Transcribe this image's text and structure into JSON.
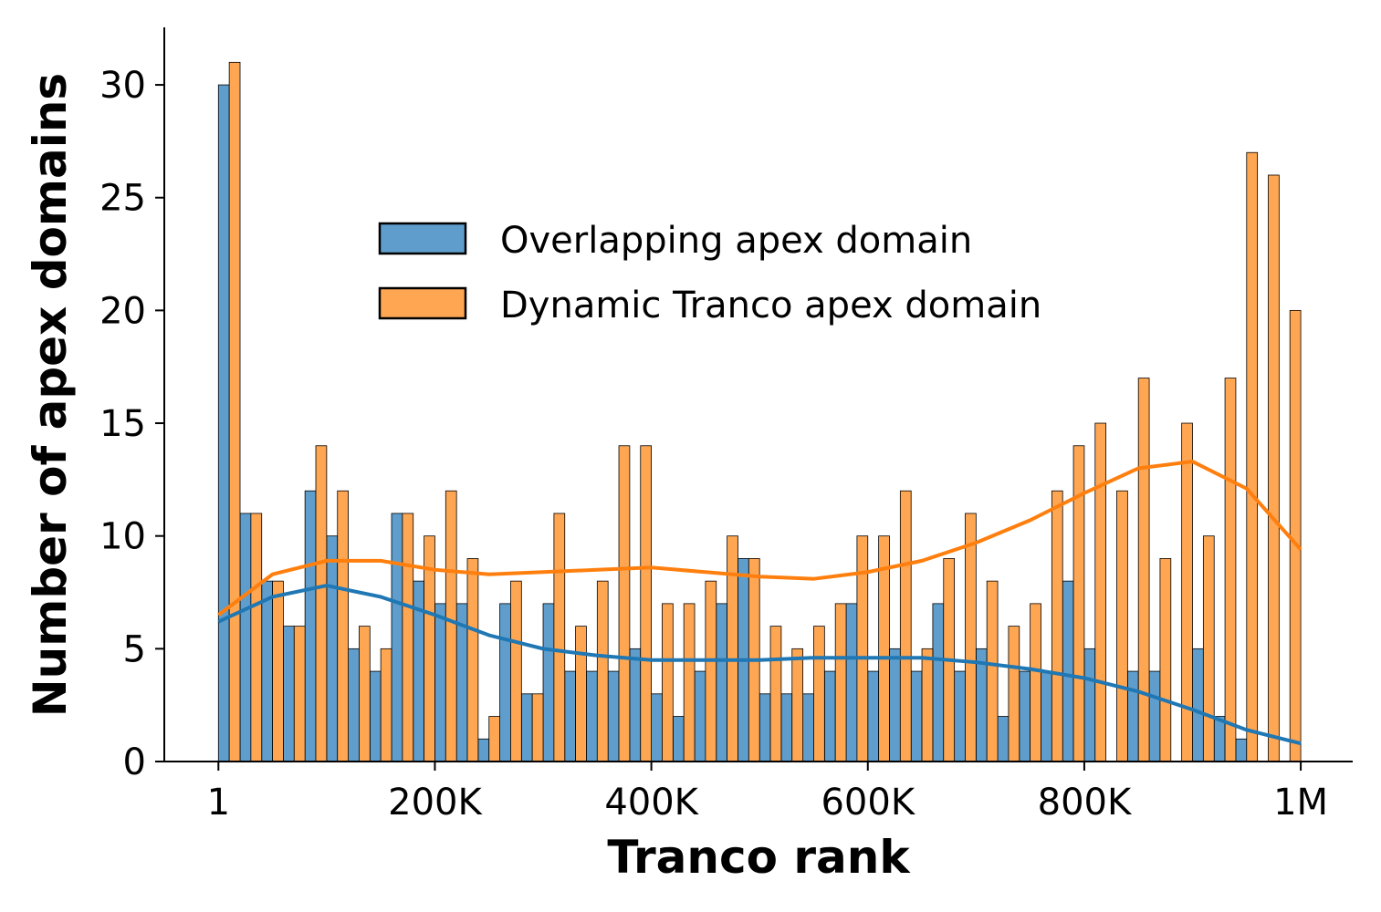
{
  "chart_data": {
    "type": "histogram",
    "xlabel": "Tranco rank",
    "ylabel": "Number of apex domains",
    "bins": [
      1,
      20000,
      40000,
      60000,
      80000,
      100000,
      120000,
      140000,
      160000,
      180000,
      200000,
      220000,
      240000,
      260000,
      280000,
      300000,
      320000,
      340000,
      360000,
      380000,
      400000,
      420000,
      440000,
      460000,
      480000,
      500000,
      520000,
      540000,
      560000,
      580000,
      600000,
      620000,
      640000,
      660000,
      680000,
      700000,
      720000,
      740000,
      760000,
      780000,
      800000,
      820000,
      840000,
      860000,
      880000,
      900000,
      920000,
      940000,
      960000,
      980000,
      1000000
    ],
    "series": [
      {
        "name": "Overlapping apex domain",
        "color": "#5f9ecc",
        "line_color": "#1f77b4",
        "values": [
          30,
          11,
          8,
          6,
          12,
          10,
          5,
          4,
          11,
          8,
          7,
          7,
          1,
          7,
          3,
          7,
          4,
          4,
          4,
          5,
          3,
          2,
          4,
          7,
          9,
          3,
          3,
          3,
          4,
          7,
          4,
          5,
          4,
          7,
          4,
          5,
          2,
          4,
          4,
          8,
          5,
          0,
          4,
          4,
          0,
          5,
          2,
          1,
          0,
          0
        ],
        "kde_values": [
          6.2,
          7.3,
          7.8,
          7.3,
          6.5,
          5.6,
          5.0,
          4.7,
          4.5,
          4.5,
          4.5,
          4.6,
          4.6,
          4.6,
          4.4,
          4.1,
          3.7,
          3.1,
          2.3,
          1.4,
          0.8
        ]
      },
      {
        "name": "Dynamic Tranco apex domain",
        "color": "#ffa652",
        "line_color": "#ff7f0e",
        "values": [
          31,
          11,
          8,
          6,
          14,
          12,
          6,
          5,
          11,
          10,
          12,
          9,
          2,
          8,
          3,
          11,
          6,
          8,
          14,
          14,
          7,
          7,
          8,
          10,
          9,
          6,
          5,
          6,
          7,
          10,
          10,
          12,
          5,
          9,
          11,
          8,
          6,
          7,
          12,
          14,
          15,
          12,
          17,
          9,
          15,
          10,
          17,
          27,
          26,
          20
        ],
        "kde_values": [
          6.5,
          8.3,
          8.9,
          8.9,
          8.5,
          8.3,
          8.4,
          8.5,
          8.6,
          8.4,
          8.2,
          8.1,
          8.4,
          8.9,
          9.7,
          10.7,
          11.9,
          13.0,
          13.3,
          12.1,
          9.4
        ]
      }
    ],
    "kde_x": [
      1,
      50000,
      100000,
      150000,
      200000,
      250000,
      300000,
      350000,
      400000,
      450000,
      500000,
      550000,
      600000,
      650000,
      700000,
      750000,
      800000,
      850000,
      900000,
      950000,
      1000000
    ],
    "xlim": [
      -50000,
      1048000
    ],
    "ylim": [
      0,
      32.55
    ],
    "xticks": [
      1,
      {
        "value": 200000,
        "label": "200K"
      },
      {
        "value": 400000,
        "label": "400K"
      },
      {
        "value": 600000,
        "label": "600K"
      },
      {
        "value": 800000,
        "label": "800K"
      },
      {
        "value": 1000000,
        "label": "1M"
      }
    ],
    "yticks": [
      0,
      5,
      10,
      15,
      20,
      25,
      30
    ],
    "legend": "upper center"
  }
}
